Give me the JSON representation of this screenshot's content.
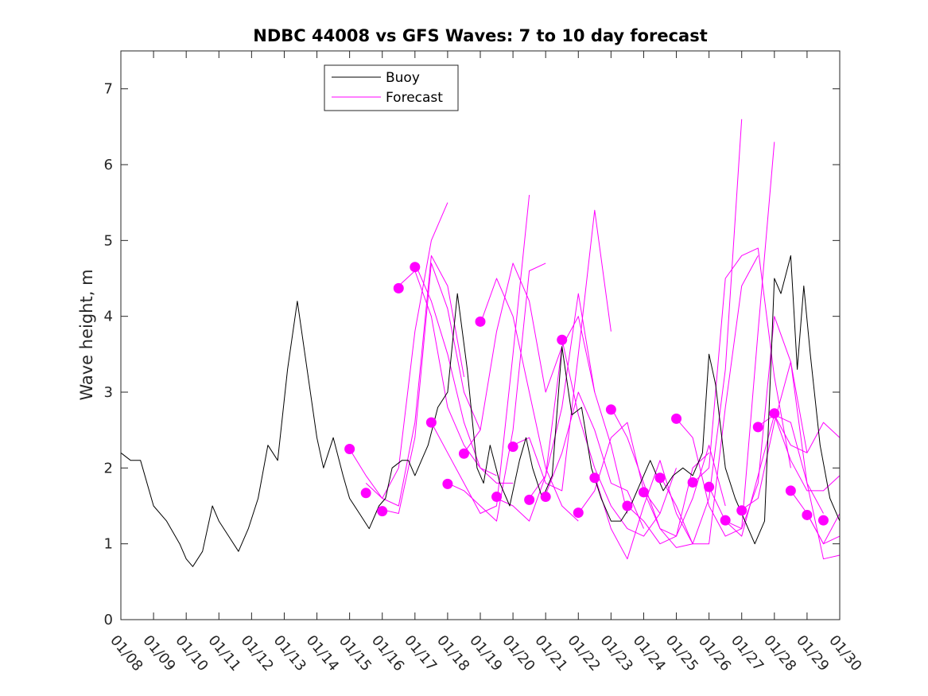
{
  "chart_data": {
    "type": "line",
    "title": "NDBC 44008 vs GFS Waves: 7 to 10 day forecast",
    "xlabel": "",
    "ylabel": "Wave height, m",
    "xlim": [
      0,
      22
    ],
    "ylim": [
      0,
      7.5
    ],
    "x_unit": "days since 01/08",
    "xticks": [
      0,
      1,
      2,
      3,
      4,
      5,
      6,
      7,
      8,
      9,
      10,
      11,
      12,
      13,
      14,
      15,
      16,
      17,
      18,
      19,
      20,
      21,
      22
    ],
    "xtick_labels": [
      "01/08",
      "01/09",
      "01/10",
      "01/11",
      "01/12",
      "01/13",
      "01/14",
      "01/15",
      "01/16",
      "01/17",
      "01/18",
      "01/19",
      "01/20",
      "01/21",
      "01/22",
      "01/23",
      "01/24",
      "01/25",
      "01/26",
      "01/27",
      "01/28",
      "01/29",
      "01/30"
    ],
    "yticks": [
      0,
      1,
      2,
      3,
      4,
      5,
      6,
      7
    ],
    "ytick_labels": [
      "0",
      "1",
      "2",
      "3",
      "4",
      "5",
      "6",
      "7"
    ],
    "grid": false,
    "legend_position": "top-left",
    "legend": [
      "Buoy",
      "Forecast"
    ],
    "colors": {
      "buoy": "#000000",
      "forecast": "#ff00ff",
      "axis": "#262626"
    },
    "buoy": {
      "name": "Buoy",
      "x": [
        0,
        0.3,
        0.6,
        1.0,
        1.4,
        1.8,
        2.0,
        2.2,
        2.5,
        2.8,
        3.0,
        3.3,
        3.6,
        3.9,
        4.2,
        4.5,
        4.8,
        5.1,
        5.4,
        5.7,
        6.0,
        6.2,
        6.5,
        6.8,
        7.0,
        7.3,
        7.6,
        7.9,
        8.1,
        8.3,
        8.6,
        8.8,
        9.0,
        9.2,
        9.4,
        9.7,
        10.0,
        10.3,
        10.6,
        10.9,
        11.1,
        11.3,
        11.6,
        11.9,
        12.2,
        12.4,
        12.6,
        12.9,
        13.2,
        13.5,
        13.8,
        14.1,
        14.4,
        14.7,
        15.0,
        15.3,
        15.6,
        15.9,
        16.2,
        16.4,
        16.6,
        16.9,
        17.2,
        17.5,
        17.8,
        18.0,
        18.2,
        18.5,
        18.8,
        19.1,
        19.4,
        19.7,
        20.0,
        20.2,
        20.5,
        20.7,
        20.9,
        21.1,
        21.4,
        21.7,
        22.0
      ],
      "y": [
        2.2,
        2.1,
        2.1,
        1.5,
        1.3,
        1.0,
        0.8,
        0.7,
        0.9,
        1.5,
        1.3,
        1.1,
        0.9,
        1.2,
        1.6,
        2.3,
        2.1,
        3.3,
        4.2,
        3.3,
        2.4,
        2.0,
        2.4,
        1.9,
        1.6,
        1.4,
        1.2,
        1.5,
        1.6,
        2.0,
        2.1,
        2.1,
        1.9,
        2.1,
        2.3,
        2.8,
        3.0,
        4.3,
        3.3,
        2.0,
        1.8,
        2.3,
        1.8,
        1.5,
        2.1,
        2.4,
        2.0,
        1.6,
        1.9,
        3.6,
        2.7,
        2.8,
        2.0,
        1.6,
        1.3,
        1.3,
        1.5,
        1.8,
        2.1,
        1.9,
        1.7,
        1.9,
        2.0,
        1.9,
        2.2,
        3.5,
        3.1,
        2.0,
        1.6,
        1.3,
        1.0,
        1.3,
        4.5,
        4.3,
        4.8,
        3.3,
        4.4,
        3.5,
        2.3,
        1.6,
        1.3
      ]
    },
    "forecast_series": [
      {
        "name": "Forecast",
        "x": [
          7.0,
          7.5,
          8.0,
          8.5,
          9.0,
          9.5,
          10.0
        ],
        "y": [
          2.25,
          1.9,
          1.6,
          2.0,
          3.8,
          5.0,
          5.5
        ]
      },
      {
        "name": "Forecast",
        "x": [
          7.5,
          8.0,
          8.5,
          9.0,
          9.5,
          10.0,
          10.5
        ],
        "y": [
          1.8,
          1.6,
          1.5,
          2.6,
          4.8,
          4.4,
          3.2
        ]
      },
      {
        "name": "Forecast",
        "x": [
          8.0,
          8.5,
          9.0,
          9.5,
          10.0,
          10.5,
          11.0
        ],
        "y": [
          1.45,
          1.4,
          2.4,
          4.7,
          4.1,
          3.0,
          2.5
        ]
      },
      {
        "name": "Forecast",
        "x": [
          8.5,
          9.0,
          9.5,
          10.0,
          10.5,
          11.0,
          11.5
        ],
        "y": [
          4.4,
          4.6,
          4.0,
          2.8,
          2.3,
          2.0,
          1.9
        ]
      },
      {
        "name": "Forecast",
        "x": [
          9.0,
          9.5,
          10.0,
          10.5,
          11.0,
          11.5,
          12.0
        ],
        "y": [
          4.7,
          4.2,
          3.5,
          2.6,
          2.0,
          1.8,
          1.8
        ]
      },
      {
        "name": "Forecast",
        "x": [
          9.5,
          10.0,
          10.5,
          11.0,
          11.5,
          12.0,
          12.5
        ],
        "y": [
          2.6,
          2.2,
          1.8,
          1.4,
          1.5,
          3.5,
          5.6
        ]
      },
      {
        "name": "Forecast",
        "x": [
          10.0,
          10.5,
          11.0,
          11.5,
          12.0,
          12.5,
          13.0
        ],
        "y": [
          1.8,
          1.7,
          1.5,
          1.3,
          2.5,
          4.6,
          4.7
        ]
      },
      {
        "name": "Forecast",
        "x": [
          10.5,
          11.0,
          11.5,
          12.0,
          12.5,
          13.0,
          13.5
        ],
        "y": [
          2.2,
          2.5,
          3.8,
          4.7,
          4.2,
          3.0,
          3.6
        ]
      },
      {
        "name": "Forecast",
        "x": [
          11.0,
          11.5,
          12.0,
          12.5,
          13.0,
          13.5,
          14.0
        ],
        "y": [
          3.9,
          4.5,
          4.0,
          3.0,
          2.0,
          1.5,
          1.3
        ]
      },
      {
        "name": "Forecast",
        "x": [
          11.5,
          12.0,
          12.5,
          13.0,
          13.5,
          14.0,
          14.5
        ],
        "y": [
          1.6,
          1.5,
          1.3,
          1.9,
          3.6,
          4.0,
          3.0
        ]
      },
      {
        "name": "Forecast",
        "x": [
          12.0,
          12.5,
          13.0,
          13.5,
          14.0,
          14.5,
          15.0
        ],
        "y": [
          2.3,
          2.4,
          1.8,
          1.7,
          3.5,
          5.4,
          3.8
        ]
      },
      {
        "name": "Forecast",
        "x": [
          12.5,
          13.0,
          13.5,
          14.0,
          14.5,
          15.0,
          15.5
        ],
        "y": [
          1.6,
          1.9,
          2.8,
          4.3,
          3.0,
          2.3,
          1.4
        ]
      },
      {
        "name": "Forecast",
        "x": [
          13.0,
          13.5,
          14.0,
          14.5,
          15.0,
          15.5,
          16.0
        ],
        "y": [
          1.65,
          2.2,
          3.0,
          2.5,
          1.8,
          1.7,
          1.2
        ]
      },
      {
        "name": "Forecast",
        "x": [
          13.5,
          14.0,
          14.5,
          15.0,
          15.5,
          16.0,
          16.5
        ],
        "y": [
          3.7,
          2.7,
          2.0,
          1.5,
          1.2,
          1.1,
          1.4
        ]
      },
      {
        "name": "Forecast",
        "x": [
          14.0,
          14.5,
          15.0,
          15.5,
          16.0,
          16.5,
          17.0
        ],
        "y": [
          1.4,
          1.7,
          2.4,
          2.6,
          1.7,
          1.4,
          2.0
        ]
      },
      {
        "name": "Forecast",
        "x": [
          14.5,
          15.0,
          15.5,
          16.0,
          16.5,
          17.0,
          17.5
        ],
        "y": [
          1.9,
          1.2,
          0.8,
          1.5,
          2.1,
          1.4,
          1.0
        ]
      },
      {
        "name": "Forecast",
        "x": [
          15.0,
          15.5,
          16.0,
          16.5,
          17.0,
          17.5,
          18.0
        ],
        "y": [
          2.8,
          2.4,
          1.8,
          1.2,
          1.1,
          2.0,
          2.2
        ]
      },
      {
        "name": "Forecast",
        "x": [
          15.5,
          16.0,
          16.5,
          17.0,
          17.5,
          18.0,
          18.5
        ],
        "y": [
          1.5,
          1.3,
          1.0,
          1.1,
          1.6,
          2.3,
          1.5
        ]
      },
      {
        "name": "Forecast",
        "x": [
          16.0,
          16.5,
          17.0,
          17.5,
          18.0,
          18.5,
          19.0
        ],
        "y": [
          1.7,
          1.2,
          0.95,
          1.0,
          1.6,
          3.3,
          6.6
        ]
      },
      {
        "name": "Forecast",
        "x": [
          16.5,
          17.0,
          17.5,
          18.0,
          18.5,
          19.0,
          19.5
        ],
        "y": [
          1.9,
          1.5,
          1.0,
          1.0,
          2.8,
          4.4,
          4.8
        ]
      },
      {
        "name": "Forecast",
        "x": [
          17.0,
          17.5,
          18.0,
          18.5,
          19.0,
          19.5,
          20.0
        ],
        "y": [
          2.65,
          2.4,
          1.5,
          1.1,
          1.2,
          3.8,
          6.3
        ]
      },
      {
        "name": "Forecast",
        "x": [
          17.5,
          18.0,
          18.5,
          19.0,
          19.5,
          20.0,
          20.5
        ],
        "y": [
          1.8,
          2.0,
          4.5,
          4.8,
          4.9,
          3.2,
          2.0
        ]
      },
      {
        "name": "Forecast",
        "x": [
          18.0,
          18.5,
          19.0,
          19.5,
          20.0,
          20.5,
          21.0
        ],
        "y": [
          1.75,
          1.3,
          1.2,
          1.8,
          4.0,
          3.4,
          2.2
        ]
      },
      {
        "name": "Forecast",
        "x": [
          18.5,
          19.0,
          19.5,
          20.0,
          20.5,
          21.0,
          21.5
        ],
        "y": [
          1.3,
          1.1,
          1.9,
          2.7,
          2.6,
          1.8,
          1.4
        ]
      },
      {
        "name": "Forecast",
        "x": [
          19.0,
          19.5,
          20.0,
          20.5,
          21.0,
          21.5,
          22.0
        ],
        "y": [
          1.45,
          1.6,
          2.6,
          3.4,
          1.8,
          0.8,
          0.85
        ]
      },
      {
        "name": "Forecast",
        "x": [
          19.5,
          20.0,
          20.5,
          21.0,
          21.5,
          22.0
        ],
        "y": [
          2.55,
          2.7,
          2.1,
          1.7,
          1.7,
          1.9
        ]
      },
      {
        "name": "Forecast",
        "x": [
          20.0,
          20.5,
          21.0,
          21.5,
          22.0
        ],
        "y": [
          2.7,
          2.3,
          2.2,
          2.6,
          2.4
        ]
      },
      {
        "name": "Forecast",
        "x": [
          20.5,
          21.0,
          21.5,
          22.0
        ],
        "y": [
          1.7,
          1.4,
          1.0,
          1.4
        ]
      },
      {
        "name": "Forecast",
        "x": [
          21.0,
          21.5,
          22.0
        ],
        "y": [
          1.4,
          1.0,
          1.1
        ]
      }
    ],
    "forecast_markers": {
      "x": [
        7.0,
        7.5,
        8.0,
        8.5,
        9.0,
        9.5,
        10.0,
        10.5,
        11.0,
        11.5,
        12.0,
        12.5,
        13.0,
        13.5,
        14.0,
        14.5,
        15.0,
        15.5,
        16.0,
        16.5,
        17.0,
        17.5,
        18.0,
        18.5,
        19.0,
        19.5,
        20.0,
        20.5,
        21.0,
        21.5
      ],
      "y": [
        2.25,
        1.67,
        1.43,
        4.37,
        4.65,
        2.6,
        1.79,
        2.19,
        3.93,
        1.62,
        2.28,
        1.58,
        1.62,
        3.69,
        1.41,
        1.87,
        2.77,
        1.5,
        1.68,
        1.87,
        2.65,
        1.81,
        1.75,
        1.31,
        1.44,
        2.54,
        2.72,
        1.7,
        1.38,
        1.31
      ]
    }
  }
}
